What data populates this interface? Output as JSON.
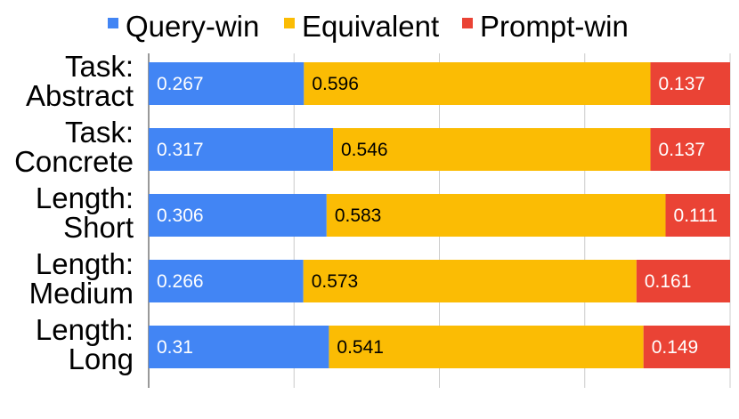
{
  "chart_data": {
    "type": "bar",
    "orientation": "horizontal",
    "stacked": true,
    "normalized": true,
    "categories": [
      [
        "Task:",
        "Abstract"
      ],
      [
        "Task:",
        "Concrete"
      ],
      [
        "Length:",
        "Short"
      ],
      [
        "Length:",
        "Medium"
      ],
      [
        "Length:",
        "Long"
      ]
    ],
    "series": [
      {
        "name": "Query-win",
        "color": "#4285f4",
        "label_color": "#ffffff",
        "values": [
          0.267,
          0.317,
          0.306,
          0.266,
          0.31
        ]
      },
      {
        "name": "Equivalent",
        "color": "#fbbc04",
        "label_color": "#000000",
        "values": [
          0.596,
          0.546,
          0.583,
          0.573,
          0.541
        ]
      },
      {
        "name": "Prompt-win",
        "color": "#ea4335",
        "label_color": "#ffffff",
        "values": [
          0.137,
          0.137,
          0.111,
          0.161,
          0.149
        ]
      }
    ],
    "xlim": [
      0,
      1
    ],
    "x_gridlines": [
      0,
      0.25,
      0.5,
      0.75,
      1
    ],
    "grid": true,
    "legend": "top",
    "title": "",
    "xlabel": "",
    "ylabel": ""
  }
}
